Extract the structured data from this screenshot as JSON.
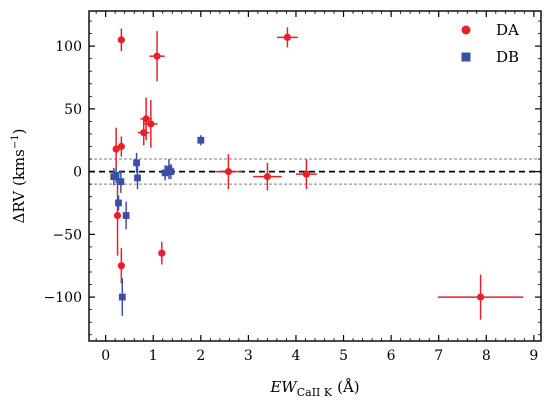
{
  "chart_data": {
    "type": "scatter",
    "xlabel": "EW",
    "xlabel_sub": "CaII K",
    "xlabel_unit": "(Å)",
    "ylabel": "ΔRV",
    "ylabel_unit_open": "(kms",
    "ylabel_unit_exp": "−1",
    "ylabel_unit_close": ")",
    "xlim": [
      -0.35,
      9.15
    ],
    "ylim": [
      -135,
      128
    ],
    "xticks": [
      0,
      1,
      2,
      3,
      4,
      5,
      6,
      7,
      8,
      9
    ],
    "yticks": [
      -100,
      -50,
      0,
      50,
      100
    ],
    "ytick_labels": [
      "−100",
      "−50",
      "0",
      "50",
      "100"
    ],
    "reference_lines": [
      {
        "y": 0,
        "style": "dashed-thick",
        "color": "#000000"
      },
      {
        "y": 10,
        "style": "dashed-thin",
        "color": "#808080"
      },
      {
        "y": -10,
        "style": "dashed-thin",
        "color": "#808080"
      }
    ],
    "legend": {
      "position": "top-right"
    },
    "series": [
      {
        "name": "DA",
        "marker": "circle",
        "color": "#e8202a",
        "points": [
          {
            "x": 0.33,
            "y": 105,
            "xerr": 0.06,
            "yerr": 9
          },
          {
            "x": 0.33,
            "y": 20,
            "xerr": 0.07,
            "yerr": 8
          },
          {
            "x": 0.22,
            "y": 18,
            "xerr": 0.06,
            "yerr": 17
          },
          {
            "x": 0.25,
            "y": -35,
            "xerr": 0.05,
            "yerr": 32
          },
          {
            "x": 0.33,
            "y": -75,
            "xerr": 0.05,
            "yerr": 14
          },
          {
            "x": 0.8,
            "y": 31,
            "xerr": 0.12,
            "yerr": 10
          },
          {
            "x": 0.85,
            "y": 42,
            "xerr": 0.12,
            "yerr": 17
          },
          {
            "x": 0.95,
            "y": 38,
            "xerr": 0.14,
            "yerr": 19
          },
          {
            "x": 1.08,
            "y": 92,
            "xerr": 0.16,
            "yerr": 20
          },
          {
            "x": 1.18,
            "y": -65,
            "xerr": 0.05,
            "yerr": 9
          },
          {
            "x": 2.58,
            "y": 0,
            "xerr": 0.28,
            "yerr": 14
          },
          {
            "x": 3.4,
            "y": -4,
            "xerr": 0.3,
            "yerr": 11
          },
          {
            "x": 3.82,
            "y": 107,
            "xerr": 0.22,
            "yerr": 8
          },
          {
            "x": 4.22,
            "y": -2,
            "xerr": 0.22,
            "yerr": 12
          },
          {
            "x": 7.88,
            "y": -100,
            "xerr": 0.9,
            "yerr": 18
          }
        ]
      },
      {
        "name": "DB",
        "marker": "square",
        "color": "#3a50a8",
        "points": [
          {
            "x": 0.17,
            "y": -4,
            "xerr": 0.04,
            "yerr": 7
          },
          {
            "x": 0.22,
            "y": -3,
            "xerr": 0.04,
            "yerr": 6
          },
          {
            "x": 0.27,
            "y": -25,
            "xerr": 0.04,
            "yerr": 6
          },
          {
            "x": 0.32,
            "y": -8,
            "xerr": 0.05,
            "yerr": 9
          },
          {
            "x": 0.35,
            "y": -100,
            "xerr": 0.05,
            "yerr": 15
          },
          {
            "x": 0.43,
            "y": -35,
            "xerr": 0.06,
            "yerr": 11
          },
          {
            "x": 0.65,
            "y": 7,
            "xerr": 0.05,
            "yerr": 8
          },
          {
            "x": 0.67,
            "y": -5,
            "xerr": 0.05,
            "yerr": 9
          },
          {
            "x": 1.25,
            "y": -1,
            "xerr": 0.08,
            "yerr": 6
          },
          {
            "x": 1.33,
            "y": 2,
            "xerr": 0.08,
            "yerr": 8
          },
          {
            "x": 1.37,
            "y": 0,
            "xerr": 0.06,
            "yerr": 6
          },
          {
            "x": 2.0,
            "y": 25,
            "xerr": 0.06,
            "yerr": 4
          }
        ]
      }
    ]
  }
}
